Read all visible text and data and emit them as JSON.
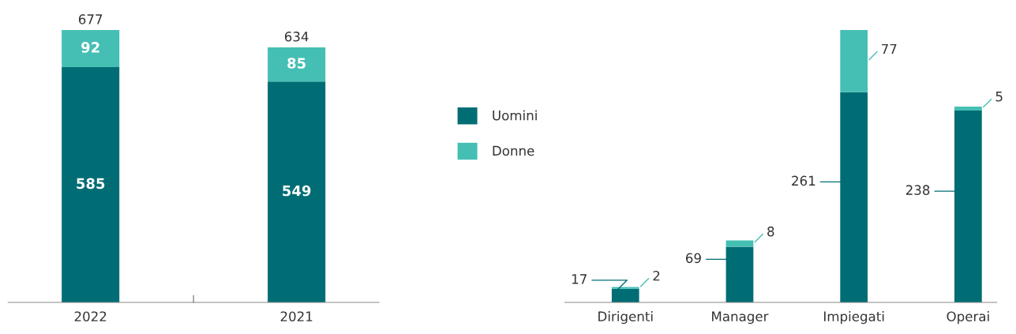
{
  "chart_data": [
    {
      "type": "bar",
      "stacked": true,
      "categories": [
        "2022",
        "2021"
      ],
      "legend": "right",
      "tick_labels": "x",
      "data_labels": true,
      "grid": false,
      "series": [
        {
          "name": "Uomini",
          "color": "#006d75",
          "values": [
            585,
            549
          ]
        },
        {
          "name": "Donne",
          "color": "#45bfb4",
          "values": [
            92,
            85
          ]
        }
      ],
      "totals": [
        "677",
        "634"
      ]
    },
    {
      "type": "bar",
      "stacked": true,
      "categories": [
        "Dirigenti",
        "Manager",
        "Impiegati",
        "Operai"
      ],
      "legend": false,
      "tick_labels": "x",
      "data_labels": true,
      "grid": false,
      "series": [
        {
          "color": "#006d75",
          "values": [
            17,
            69,
            261,
            238
          ]
        },
        {
          "color": "#45bfb4",
          "values": [
            2,
            8,
            77,
            5
          ]
        }
      ]
    }
  ]
}
